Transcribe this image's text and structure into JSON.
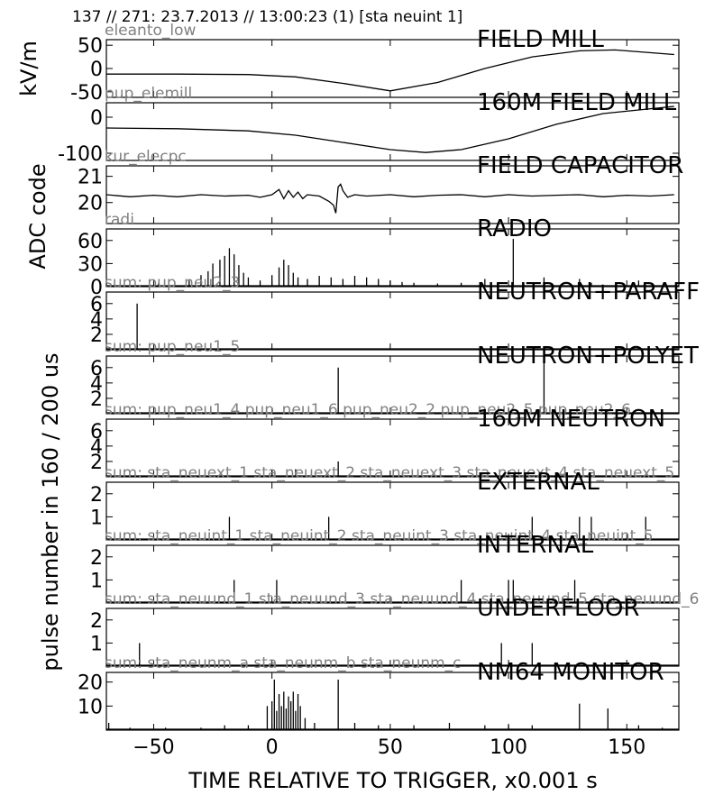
{
  "header": {
    "text": "137 // 271:   23.7.2013 // 13:00:23 (1)  [sta neuint 1]"
  },
  "x_axis_label": "TIME RELATIVE TO TRIGGER,   x0.001 s",
  "y_labels": [
    "kV/m",
    "ADC code",
    "pulse number in 160 / 200 us"
  ],
  "chart_data": {
    "type": "line",
    "x_range": [
      -70,
      172
    ],
    "x_ticks": [
      "−50",
      "0",
      "50",
      "100",
      "150"
    ],
    "x_tick_values": [
      -50,
      0,
      50,
      100,
      150
    ],
    "panels": [
      {
        "title": "FIELD MILL",
        "sensor": "eleanto_low",
        "kind": "line",
        "ylim": [
          -62,
          62
        ],
        "yticks": [
          {
            "v": 50,
            "l": "50"
          },
          {
            "v": 0,
            "l": "0"
          },
          {
            "v": -50,
            "l": "-50"
          }
        ],
        "x": [
          -70,
          -40,
          -10,
          10,
          30,
          50,
          70,
          90,
          110,
          130,
          145,
          170
        ],
        "y": [
          -12,
          -12,
          -13,
          -18,
          -32,
          -48,
          -30,
          0,
          25,
          38,
          40,
          30
        ]
      },
      {
        "title": "160M FIELD MILL",
        "sensor": "pup_elemill",
        "kind": "line",
        "ylim": [
          -120,
          40
        ],
        "yticks": [
          {
            "v": 0,
            "l": "0"
          },
          {
            "v": -100,
            "l": "-100"
          }
        ],
        "x": [
          -70,
          -40,
          -10,
          10,
          30,
          50,
          65,
          80,
          100,
          120,
          140,
          170
        ],
        "y": [
          -30,
          -32,
          -38,
          -50,
          -70,
          -90,
          -98,
          -90,
          -60,
          -20,
          10,
          30
        ]
      },
      {
        "title": "FIELD CAPACITOR",
        "sensor": "kur_elecpc",
        "kind": "line",
        "ylim": [
          19.2,
          21.4
        ],
        "yticks": [
          {
            "v": 21,
            "l": "21"
          },
          {
            "v": 20,
            "l": "20"
          }
        ],
        "x": [
          -70,
          -60,
          -50,
          -40,
          -30,
          -20,
          -10,
          -5,
          0,
          3,
          5,
          7,
          9,
          11,
          13,
          15,
          20,
          24,
          26,
          27,
          28,
          29,
          30,
          32,
          35,
          40,
          50,
          60,
          70,
          80,
          90,
          100,
          110,
          120,
          130,
          140,
          150,
          160,
          170
        ],
        "y": [
          20.3,
          20.22,
          20.28,
          20.22,
          20.3,
          20.25,
          20.28,
          20.2,
          20.3,
          20.5,
          20.15,
          20.45,
          20.2,
          20.4,
          20.15,
          20.3,
          20.25,
          20.05,
          19.9,
          19.6,
          20.6,
          20.7,
          20.45,
          20.2,
          20.3,
          20.25,
          20.3,
          20.22,
          20.28,
          20.3,
          20.22,
          20.3,
          20.25,
          20.28,
          20.3,
          20.22,
          20.28,
          20.25,
          20.3
        ]
      },
      {
        "title": "RADIO",
        "sensor": "radi",
        "kind": "bars",
        "ylim": [
          0,
          75
        ],
        "yticks": [
          {
            "v": 60,
            "l": "60"
          },
          {
            "v": 30,
            "l": "30"
          },
          {
            "v": 0,
            "l": "0"
          }
        ],
        "x": [
          -48,
          -35,
          -30,
          -27,
          -25,
          -22,
          -20,
          -18,
          -16,
          -14,
          -12,
          -10,
          -5,
          0,
          3,
          5,
          7,
          9,
          11,
          15,
          20,
          25,
          30,
          35,
          40,
          45,
          50,
          55,
          60,
          70,
          80,
          90,
          102,
          115,
          130,
          135,
          155
        ],
        "y": [
          4,
          8,
          15,
          20,
          30,
          35,
          40,
          50,
          42,
          28,
          18,
          12,
          8,
          15,
          25,
          35,
          28,
          18,
          12,
          10,
          14,
          12,
          10,
          14,
          12,
          10,
          8,
          6,
          5,
          4,
          5,
          10,
          62,
          12,
          10,
          5,
          8
        ]
      },
      {
        "title": "NEUTRON+PARAFF",
        "sensor": "sum: pup_neu2_3",
        "kind": "bars",
        "ylim": [
          0,
          7.5
        ],
        "yticks": [
          {
            "v": 6,
            "l": "6"
          },
          {
            "v": 4,
            "l": "4"
          },
          {
            "v": 2,
            "l": "2"
          }
        ],
        "x": [
          -57
        ],
        "y": [
          6
        ]
      },
      {
        "title": "NEUTRON+POLYET",
        "sensor": "sum: pup_neu1_5",
        "kind": "bars",
        "ylim": [
          0,
          7.5
        ],
        "yticks": [
          {
            "v": 6,
            "l": "6"
          },
          {
            "v": 4,
            "l": "4"
          },
          {
            "v": 2,
            "l": "2"
          }
        ],
        "x": [
          28,
          115
        ],
        "y": [
          6,
          7
        ]
      },
      {
        "title": "160M NEUTRON",
        "sensor": "sum: pup_neu1_4 pup_neu1_6 pup_neu2_2 pup_neu2_5 pup_neu2_6",
        "kind": "bars",
        "ylim": [
          0,
          7.5
        ],
        "yticks": [
          {
            "v": 6,
            "l": "6"
          },
          {
            "v": 4,
            "l": "4"
          },
          {
            "v": 2,
            "l": "2"
          }
        ],
        "x": [
          0,
          10,
          28
        ],
        "y": [
          1,
          1,
          2
        ]
      },
      {
        "title": "EXTERNAL",
        "sensor": "sum: sta_neuext_1 sta_neuext_2 sta_neuext_3 sta_neuext_4 sta_neuext_5",
        "kind": "bars",
        "ylim": [
          0,
          2.5
        ],
        "yticks": [
          {
            "v": 2,
            "l": "2"
          },
          {
            "v": 1,
            "l": "1"
          }
        ],
        "x": [
          -18,
          24,
          110,
          130,
          135,
          158
        ],
        "y": [
          1,
          1,
          1,
          1,
          1,
          1
        ]
      },
      {
        "title": "INTERNAL",
        "sensor": "sum: sta_neuint_1 sta_neuint_2 sta_neuint_3 sta_neuint_4 sta_neuint_5",
        "kind": "bars",
        "ylim": [
          0,
          2.5
        ],
        "yticks": [
          {
            "v": 2,
            "l": "2"
          },
          {
            "v": 1,
            "l": "1"
          }
        ],
        "x": [
          -16,
          2,
          80,
          100,
          102,
          128
        ],
        "y": [
          1,
          1,
          1,
          1,
          1,
          1
        ]
      },
      {
        "title": "UNDERFLOOR",
        "sensor": "sum: sta_neuund_1 sta_neuund_3 sta_neuund_4 sta_neuund_5 sta_neuund_6",
        "kind": "bars",
        "ylim": [
          0,
          2.5
        ],
        "yticks": [
          {
            "v": 2,
            "l": "2"
          },
          {
            "v": 1,
            "l": "1"
          }
        ],
        "x": [
          -56,
          97,
          110
        ],
        "y": [
          1,
          1,
          1
        ]
      },
      {
        "title": "NM64 MONITOR",
        "sensor": "sum: sta_neunm_a sta_neunm_b sta_neunm_c",
        "kind": "bars",
        "ylim": [
          0,
          24
        ],
        "yticks": [
          {
            "v": 20,
            "l": "20"
          },
          {
            "v": 10,
            "l": "10"
          }
        ],
        "x": [
          -69,
          -60,
          -45,
          -30,
          -20,
          -10,
          -2,
          0,
          1,
          2,
          3,
          4,
          5,
          6,
          7,
          8,
          9,
          10,
          11,
          12,
          14,
          18,
          28,
          35,
          45,
          60,
          75,
          90,
          100,
          110,
          130,
          142,
          155,
          165
        ],
        "y": [
          3,
          1,
          1,
          1,
          2,
          2,
          10,
          12,
          21,
          8,
          15,
          10,
          16,
          9,
          14,
          12,
          16,
          8,
          15,
          10,
          5,
          3,
          21,
          3,
          2,
          2,
          3,
          2,
          2,
          2,
          11,
          9,
          2,
          1
        ]
      }
    ]
  }
}
